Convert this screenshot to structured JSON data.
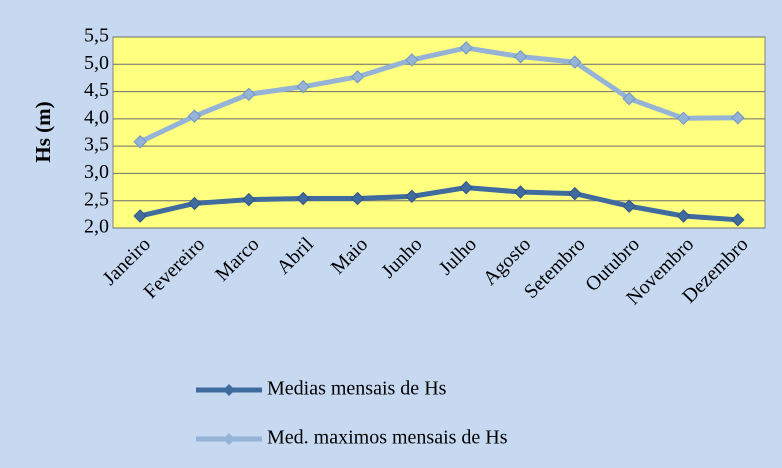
{
  "chart_data": {
    "type": "line",
    "y_label": "Hs (m)",
    "categories": [
      "Janeiro",
      "Fevereiro",
      "Marco",
      "Abril",
      "Maio",
      "Junho",
      "Julho",
      "Agosto",
      "Setembro",
      "Outubro",
      "Novembro",
      "Dezembro"
    ],
    "series": [
      {
        "name": "Medias mensais de Hs",
        "color": "#3f6b9f",
        "values": [
          2.22,
          2.45,
          2.52,
          2.54,
          2.54,
          2.58,
          2.74,
          2.66,
          2.63,
          2.4,
          2.22,
          2.15
        ]
      },
      {
        "name": "Med. maximos mensais de Hs",
        "color": "#95b3d7",
        "values": [
          3.58,
          4.05,
          4.45,
          4.59,
          4.77,
          5.08,
          5.3,
          5.14,
          5.04,
          4.37,
          4.01,
          4.02
        ]
      }
    ],
    "ylim": [
      2.0,
      5.5
    ],
    "yticks": [
      {
        "value": 2.0,
        "label": "2,0"
      },
      {
        "value": 2.5,
        "label": "2,5"
      },
      {
        "value": 3.0,
        "label": "3,0"
      },
      {
        "value": 3.5,
        "label": "3,5"
      },
      {
        "value": 4.0,
        "label": "4,0"
      },
      {
        "value": 4.5,
        "label": "4,5"
      },
      {
        "value": 5.0,
        "label": "5,0"
      },
      {
        "value": 5.5,
        "label": "5,5"
      }
    ],
    "grid": true,
    "legend": "bottom"
  }
}
